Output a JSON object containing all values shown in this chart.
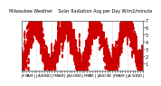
{
  "title": "Milwaukee Weather    Solar Radiation Avg per Day W/m2/minute",
  "bg_color": "#ffffff",
  "line_color": "#cc0000",
  "grid_color": "#bbbbbb",
  "ylim": [
    0,
    7
  ],
  "yticks": [
    1,
    2,
    3,
    4,
    5,
    6,
    7
  ],
  "ylabel_fontsize": 3.5,
  "xlabel_fontsize": 3.0,
  "title_fontsize": 3.5,
  "month_labels": [
    "J",
    "",
    "",
    "",
    "J",
    "",
    "",
    "",
    "J",
    "",
    "",
    "",
    "J",
    "",
    "",
    "",
    "J",
    "",
    "",
    "",
    "J",
    "",
    "",
    "",
    "J",
    "",
    "",
    "",
    "J"
  ],
  "num_years": 4,
  "seed": 17
}
